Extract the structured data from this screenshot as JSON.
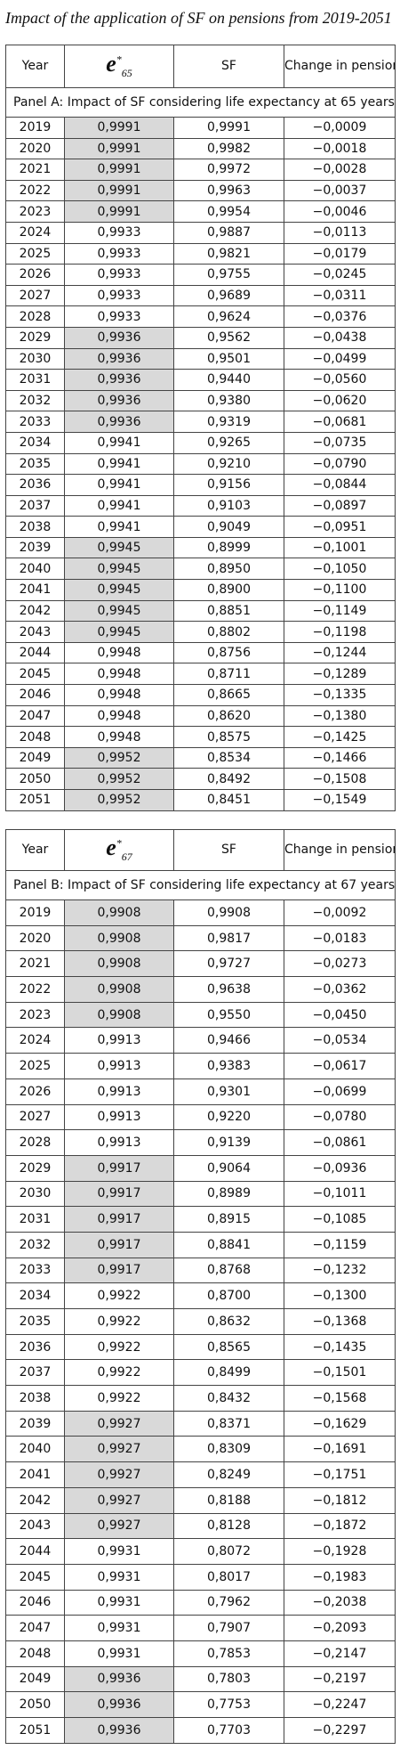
{
  "title": "Impact of the application of SF on pensions from 2019-2051",
  "tables": [
    {
      "header": {
        "year": "Year",
        "e": {
          "symbol": "e",
          "superscript": "*",
          "subscript": "65"
        },
        "sf": "SF",
        "change": "Change in pension"
      },
      "panel": "Panel A:  Impact of SF considering life expectancy at 65 years",
      "rows": [
        [
          "2019",
          "0,9991",
          "0,9991",
          "−0,0009"
        ],
        [
          "2020",
          "0,9991",
          "0,9982",
          "−0,0018"
        ],
        [
          "2021",
          "0,9991",
          "0,9972",
          "−0,0028"
        ],
        [
          "2022",
          "0,9991",
          "0,9963",
          "−0,0037"
        ],
        [
          "2023",
          "0,9991",
          "0,9954",
          "−0,0046"
        ],
        [
          "2024",
          "0,9933",
          "0,9887",
          "−0,0113"
        ],
        [
          "2025",
          "0,9933",
          "0,9821",
          "−0,0179"
        ],
        [
          "2026",
          "0,9933",
          "0,9755",
          "−0,0245"
        ],
        [
          "2027",
          "0,9933",
          "0,9689",
          "−0,0311"
        ],
        [
          "2028",
          "0,9933",
          "0,9624",
          "−0,0376"
        ],
        [
          "2029",
          "0,9936",
          "0,9562",
          "−0,0438"
        ],
        [
          "2030",
          "0,9936",
          "0,9501",
          "−0,0499"
        ],
        [
          "2031",
          "0,9936",
          "0,9440",
          "−0,0560"
        ],
        [
          "2032",
          "0,9936",
          "0,9380",
          "−0,0620"
        ],
        [
          "2033",
          "0,9936",
          "0,9319",
          "−0,0681"
        ],
        [
          "2034",
          "0,9941",
          "0,9265",
          "−0,0735"
        ],
        [
          "2035",
          "0,9941",
          "0,9210",
          "−0,0790"
        ],
        [
          "2036",
          "0,9941",
          "0,9156",
          "−0,0844"
        ],
        [
          "2037",
          "0,9941",
          "0,9103",
          "−0,0897"
        ],
        [
          "2038",
          "0,9941",
          "0,9049",
          "−0,0951"
        ],
        [
          "2039",
          "0,9945",
          "0,8999",
          "−0,1001"
        ],
        [
          "2040",
          "0,9945",
          "0,8950",
          "−0,1050"
        ],
        [
          "2041",
          "0,9945",
          "0,8900",
          "−0,1100"
        ],
        [
          "2042",
          "0,9945",
          "0,8851",
          "−0,1149"
        ],
        [
          "2043",
          "0,9945",
          "0,8802",
          "−0,1198"
        ],
        [
          "2044",
          "0,9948",
          "0,8756",
          "−0,1244"
        ],
        [
          "2045",
          "0,9948",
          "0,8711",
          "−0,1289"
        ],
        [
          "2046",
          "0,9948",
          "0,8665",
          "−0,1335"
        ],
        [
          "2047",
          "0,9948",
          "0,8620",
          "−0,1380"
        ],
        [
          "2048",
          "0,9948",
          "0,8575",
          "−0,1425"
        ],
        [
          "2049",
          "0,9952",
          "0,8534",
          "−0,1466"
        ],
        [
          "2050",
          "0,9952",
          "0,8492",
          "−0,1508"
        ],
        [
          "2051",
          "0,9952",
          "0,8451",
          "−0,1549"
        ]
      ]
    },
    {
      "header": {
        "year": "Year",
        "e": {
          "symbol": "e",
          "superscript": "*",
          "subscript": "67"
        },
        "sf": "SF",
        "change": "Change in pension"
      },
      "panel": "Panel B:  Impact of SF considering life expectancy at 67 years",
      "rows": [
        [
          "2019",
          "0,9908",
          "0,9908",
          "−0,0092"
        ],
        [
          "2020",
          "0,9908",
          "0,9817",
          "−0,0183"
        ],
        [
          "2021",
          "0,9908",
          "0,9727",
          "−0,0273"
        ],
        [
          "2022",
          "0,9908",
          "0,9638",
          "−0,0362"
        ],
        [
          "2023",
          "0,9908",
          "0,9550",
          "−0,0450"
        ],
        [
          "2024",
          "0,9913",
          "0,9466",
          "−0,0534"
        ],
        [
          "2025",
          "0,9913",
          "0,9383",
          "−0,0617"
        ],
        [
          "2026",
          "0,9913",
          "0,9301",
          "−0,0699"
        ],
        [
          "2027",
          "0,9913",
          "0,9220",
          "−0,0780"
        ],
        [
          "2028",
          "0,9913",
          "0,9139",
          "−0,0861"
        ],
        [
          "2029",
          "0,9917",
          "0,9064",
          "−0,0936"
        ],
        [
          "2030",
          "0,9917",
          "0,8989",
          "−0,1011"
        ],
        [
          "2031",
          "0,9917",
          "0,8915",
          "−0,1085"
        ],
        [
          "2032",
          "0,9917",
          "0,8841",
          "−0,1159"
        ],
        [
          "2033",
          "0,9917",
          "0,8768",
          "−0,1232"
        ],
        [
          "2034",
          "0,9922",
          "0,8700",
          "−0,1300"
        ],
        [
          "2035",
          "0,9922",
          "0,8632",
          "−0,1368"
        ],
        [
          "2036",
          "0,9922",
          "0,8565",
          "−0,1435"
        ],
        [
          "2037",
          "0,9922",
          "0,8499",
          "−0,1501"
        ],
        [
          "2038",
          "0,9922",
          "0,8432",
          "−0,1568"
        ],
        [
          "2039",
          "0,9927",
          "0,8371",
          "−0,1629"
        ],
        [
          "2040",
          "0,9927",
          "0,8309",
          "−0,1691"
        ],
        [
          "2041",
          "0,9927",
          "0,8249",
          "−0,1751"
        ],
        [
          "2042",
          "0,9927",
          "0,8188",
          "−0,1812"
        ],
        [
          "2043",
          "0,9927",
          "0,8128",
          "−0,1872"
        ],
        [
          "2044",
          "0,9931",
          "0,8072",
          "−0,1928"
        ],
        [
          "2045",
          "0,9931",
          "0,8017",
          "−0,1983"
        ],
        [
          "2046",
          "0,9931",
          "0,7962",
          "−0,2038"
        ],
        [
          "2047",
          "0,9931",
          "0,7907",
          "−0,2093"
        ],
        [
          "2048",
          "0,9931",
          "0,7853",
          "−0,2147"
        ],
        [
          "2049",
          "0,9936",
          "0,7803",
          "−0,2197"
        ],
        [
          "2050",
          "0,9936",
          "0,7753",
          "−0,2247"
        ],
        [
          "2051",
          "0,9936",
          "0,7703",
          "−0,2297"
        ]
      ]
    }
  ]
}
